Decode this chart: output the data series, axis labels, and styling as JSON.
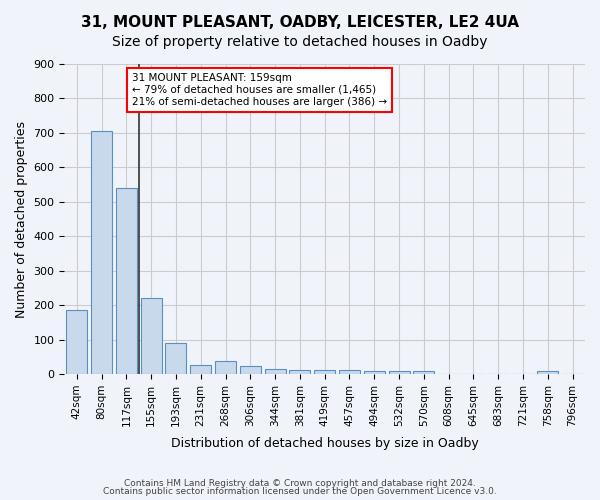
{
  "title": "31, MOUNT PLEASANT, OADBY, LEICESTER, LE2 4UA",
  "subtitle": "Size of property relative to detached houses in Oadby",
  "xlabel": "Distribution of detached houses by size in Oadby",
  "ylabel": "Number of detached properties",
  "categories": [
    "42sqm",
    "80sqm",
    "117sqm",
    "155sqm",
    "193sqm",
    "231sqm",
    "268sqm",
    "306sqm",
    "344sqm",
    "381sqm",
    "419sqm",
    "457sqm",
    "494sqm",
    "532sqm",
    "570sqm",
    "608sqm",
    "645sqm",
    "683sqm",
    "721sqm",
    "758sqm",
    "796sqm"
  ],
  "values": [
    185,
    705,
    540,
    222,
    91,
    27,
    37,
    24,
    14,
    12,
    12,
    11,
    9,
    10,
    8,
    0,
    0,
    0,
    0,
    9,
    0
  ],
  "bar_color": "#c8d9ec",
  "bar_edge_color": "#5a8fc2",
  "vline_x": 2.5,
  "vline_color": "#333333",
  "annotation_text": "31 MOUNT PLEASANT: 159sqm\n← 79% of detached houses are smaller (1,465)\n21% of semi-detached houses are larger (386) →",
  "annotation_box_color": "white",
  "annotation_box_edge_color": "red",
  "ylim": [
    0,
    900
  ],
  "yticks": [
    0,
    100,
    200,
    300,
    400,
    500,
    600,
    700,
    800,
    900
  ],
  "grid_color": "#cccccc",
  "background_color": "#f0f4fa",
  "footer_line1": "Contains HM Land Registry data © Crown copyright and database right 2024.",
  "footer_line2": "Contains public sector information licensed under the Open Government Licence v3.0.",
  "title_fontsize": 11,
  "subtitle_fontsize": 10
}
